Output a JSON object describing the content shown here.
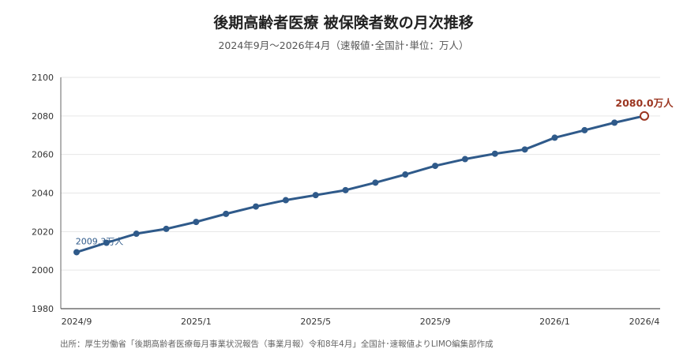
{
  "chart_data": {
    "type": "line",
    "title": "後期高齢者医療 被保険者数の月次推移",
    "subtitle": "2024年9月〜2026年4月（速報値･全国計･単位：万人）",
    "source": "出所：厚生労働省「後期高齢者医療毎月事業状況報告（事業月報）令和8年4月」全国計･速報値よりLIMO編集部作成",
    "xlabel": "",
    "ylabel": "",
    "ylim": [
      1980,
      2100
    ],
    "yticks": [
      1980,
      2000,
      2020,
      2040,
      2060,
      2080,
      2100
    ],
    "x": [
      "2024/9",
      "2024/10",
      "2024/11",
      "2024/12",
      "2025/1",
      "2025/2",
      "2025/3",
      "2025/4",
      "2025/5",
      "2025/6",
      "2025/7",
      "2025/8",
      "2025/9",
      "2025/10",
      "2025/11",
      "2025/12",
      "2026/1",
      "2026/2",
      "2026/3",
      "2026/4"
    ],
    "xtick_labels": [
      "2024/9",
      "2025/1",
      "2025/5",
      "2025/9",
      "2026/1",
      "2026/4"
    ],
    "series": [
      {
        "values": [
          2009.3,
          2014.2,
          2018.9,
          2021.4,
          2025.0,
          2029.2,
          2033.0,
          2036.3,
          2038.9,
          2041.5,
          2045.4,
          2049.6,
          2054.1,
          2057.6,
          2060.4,
          2062.6,
          2068.7,
          2072.6,
          2076.5,
          2080.0
        ]
      }
    ],
    "annotations": {
      "start": "2009.3万人",
      "end": "2080.0万人"
    },
    "grid": true,
    "colors": {
      "line": "#2f5a8a",
      "end_marker": "#9b3520",
      "grid": "#e6e6e6"
    }
  }
}
